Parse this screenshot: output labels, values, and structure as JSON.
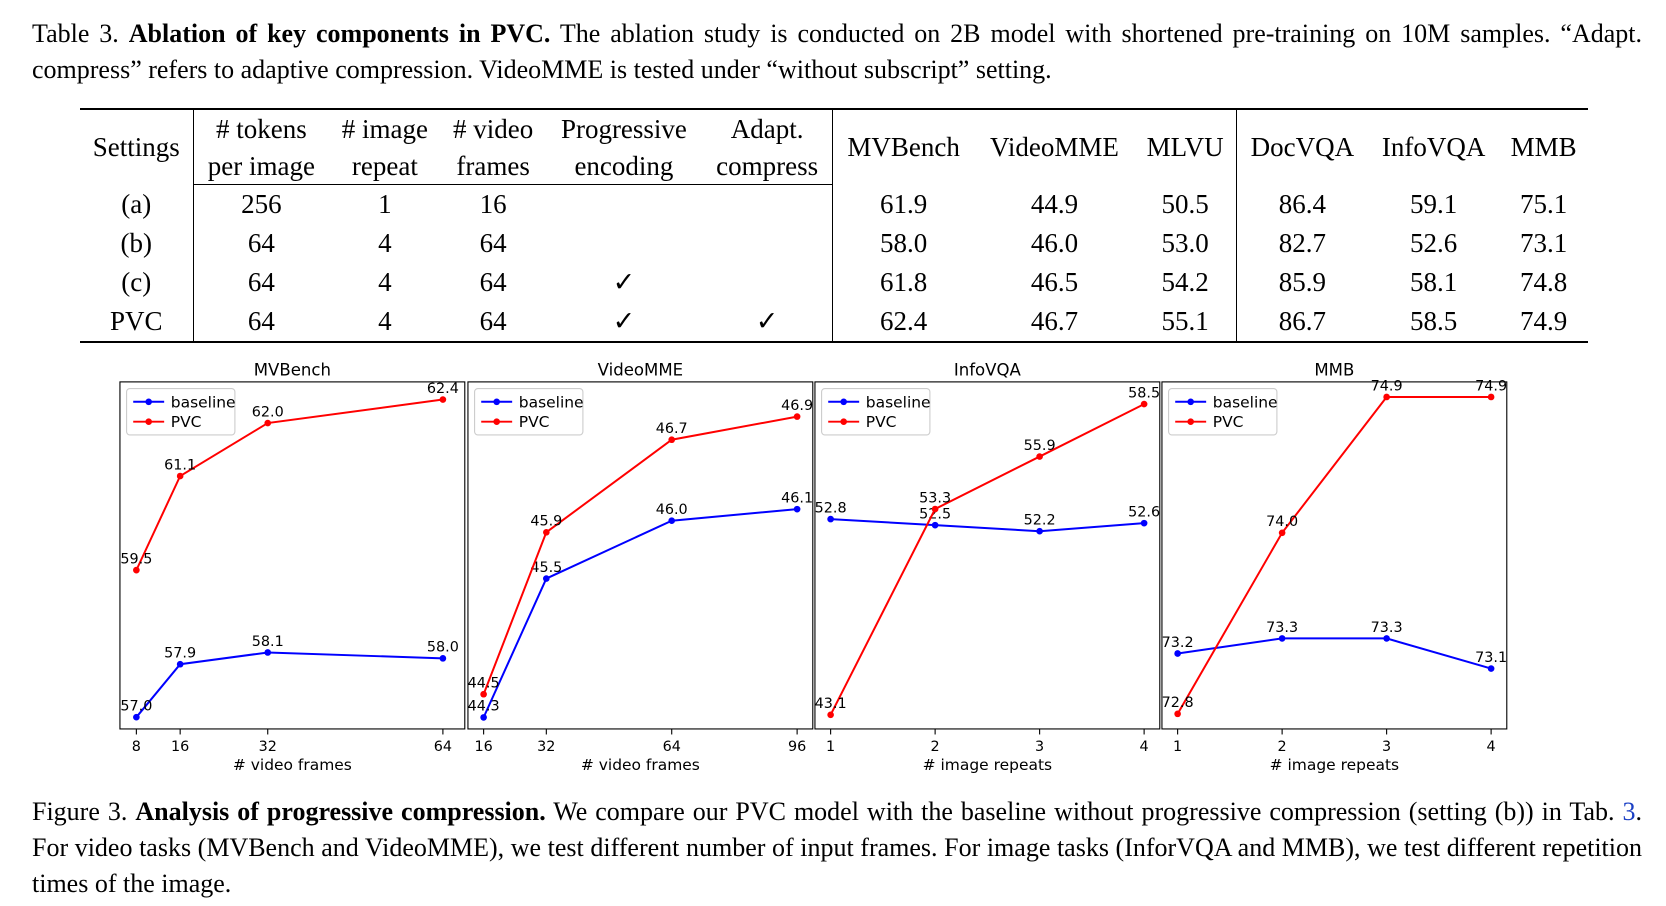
{
  "table_caption": {
    "label": "Table 3.",
    "bold": "Ablation of key components in PVC.",
    "text": "The ablation study is conducted on 2B model with shortened pre-training on 10M samples. “Adapt. compress” refers to adaptive compression. VideoMME is tested under “without subscript” setting."
  },
  "table": {
    "headers": {
      "settings": "Settings",
      "tokens_1": "# tokens",
      "tokens_2": "per image",
      "repeat_1": "# image",
      "repeat_2": "repeat",
      "frames_1": "# video",
      "frames_2": "frames",
      "prog_1": "Progressive",
      "prog_2": "encoding",
      "adapt_1": "Adapt.",
      "adapt_2": "compress",
      "mvbench": "MVBench",
      "videomme": "VideoMME",
      "mlvu": "MLVU",
      "docvqa": "DocVQA",
      "infovqa": "InfoVQA",
      "mmb": "MMB"
    },
    "rows": [
      {
        "setting": "(a)",
        "tokens": "256",
        "repeat": "1",
        "frames": "16",
        "prog": "",
        "adapt": "",
        "mvbench": "61.9",
        "videomme": "44.9",
        "mlvu": "50.5",
        "docvqa": "86.4",
        "infovqa": "59.1",
        "mmb": "75.1"
      },
      {
        "setting": "(b)",
        "tokens": "64",
        "repeat": "4",
        "frames": "64",
        "prog": "",
        "adapt": "",
        "mvbench": "58.0",
        "videomme": "46.0",
        "mlvu": "53.0",
        "docvqa": "82.7",
        "infovqa": "52.6",
        "mmb": "73.1"
      },
      {
        "setting": "(c)",
        "tokens": "64",
        "repeat": "4",
        "frames": "64",
        "prog": "✓",
        "adapt": "",
        "mvbench": "61.8",
        "videomme": "46.5",
        "mlvu": "54.2",
        "docvqa": "85.9",
        "infovqa": "58.1",
        "mmb": "74.8"
      },
      {
        "setting": "PVC",
        "tokens": "64",
        "repeat": "4",
        "frames": "64",
        "prog": "✓",
        "adapt": "✓",
        "mvbench": "62.4",
        "videomme": "46.7",
        "mlvu": "55.1",
        "docvqa": "86.7",
        "infovqa": "58.5",
        "mmb": "74.9"
      }
    ]
  },
  "colors": {
    "baseline": "#0000ff",
    "pvc": "#ff0000"
  },
  "chart_data": [
    {
      "type": "line",
      "title": "MVBench",
      "xlabel": "# video frames",
      "x": [
        8,
        16,
        32,
        64
      ],
      "xticks": [
        "8",
        "16",
        "32",
        "64"
      ],
      "xlim": [
        5,
        68
      ],
      "ylim": [
        56.8,
        62.7
      ],
      "legend": "top-left",
      "series": [
        {
          "name": "baseline",
          "values": [
            57.0,
            57.9,
            58.1,
            58.0
          ],
          "labels": [
            "57.0",
            "57.9",
            "58.1",
            "58.0"
          ]
        },
        {
          "name": "PVC",
          "values": [
            59.5,
            61.1,
            62.0,
            62.4
          ],
          "labels": [
            "59.5",
            "61.1",
            "62.0",
            "62.4"
          ]
        }
      ]
    },
    {
      "type": "line",
      "title": "VideoMME",
      "xlabel": "# video frames",
      "x": [
        16,
        32,
        64,
        96
      ],
      "xticks": [
        "16",
        "32",
        "64",
        "96"
      ],
      "xlim": [
        12,
        100
      ],
      "ylim": [
        44.2,
        47.2
      ],
      "legend": "top-left",
      "series": [
        {
          "name": "baseline",
          "values": [
            44.3,
            45.5,
            46.0,
            46.1
          ],
          "labels": [
            "44.3",
            "45.5",
            "46.0",
            "46.1"
          ]
        },
        {
          "name": "PVC",
          "values": [
            44.5,
            45.9,
            46.7,
            46.9
          ],
          "labels": [
            "44.5",
            "45.9",
            "46.7",
            "46.9"
          ]
        }
      ]
    },
    {
      "type": "line",
      "title": "InfoVQA",
      "xlabel": "# image repeats",
      "x": [
        1,
        2,
        3,
        4
      ],
      "xticks": [
        "1",
        "2",
        "3",
        "4"
      ],
      "xlim": [
        0.85,
        4.15
      ],
      "ylim": [
        42.4,
        59.6
      ],
      "legend": "top-left",
      "series": [
        {
          "name": "baseline",
          "values": [
            52.8,
            52.5,
            52.2,
            52.6
          ],
          "labels": [
            "52.8",
            "52.5",
            "52.2",
            "52.6"
          ]
        },
        {
          "name": "PVC",
          "values": [
            43.1,
            53.3,
            55.9,
            58.5
          ],
          "labels": [
            "43.1",
            "53.3",
            "55.9",
            "58.5"
          ]
        }
      ]
    },
    {
      "type": "line",
      "title": "MMB",
      "xlabel": "# image repeats",
      "x": [
        1,
        2,
        3,
        4
      ],
      "xticks": [
        "1",
        "2",
        "3",
        "4"
      ],
      "xlim": [
        0.85,
        4.15
      ],
      "ylim": [
        72.7,
        75.0
      ],
      "legend": "top-left",
      "series": [
        {
          "name": "baseline",
          "values": [
            73.2,
            73.3,
            73.3,
            73.1
          ],
          "labels": [
            "73.2",
            "73.3",
            "73.3",
            "73.1"
          ]
        },
        {
          "name": "PVC",
          "values": [
            72.8,
            74.0,
            74.9,
            74.9
          ],
          "labels": [
            "72.8",
            "74.0",
            "74.9",
            "74.9"
          ]
        }
      ]
    }
  ],
  "figure_caption": {
    "label": "Figure 3.",
    "bold": "Analysis of progressive compression.",
    "text_1": "We compare our PVC model with the baseline without progressive compression (setting (b)) in Tab.",
    "ref": "3",
    "text_2": ". For video tasks (MVBench and VideoMME), we test different number of input frames. For image tasks (InforVQA and MMB), we test different repetition times of the image."
  }
}
